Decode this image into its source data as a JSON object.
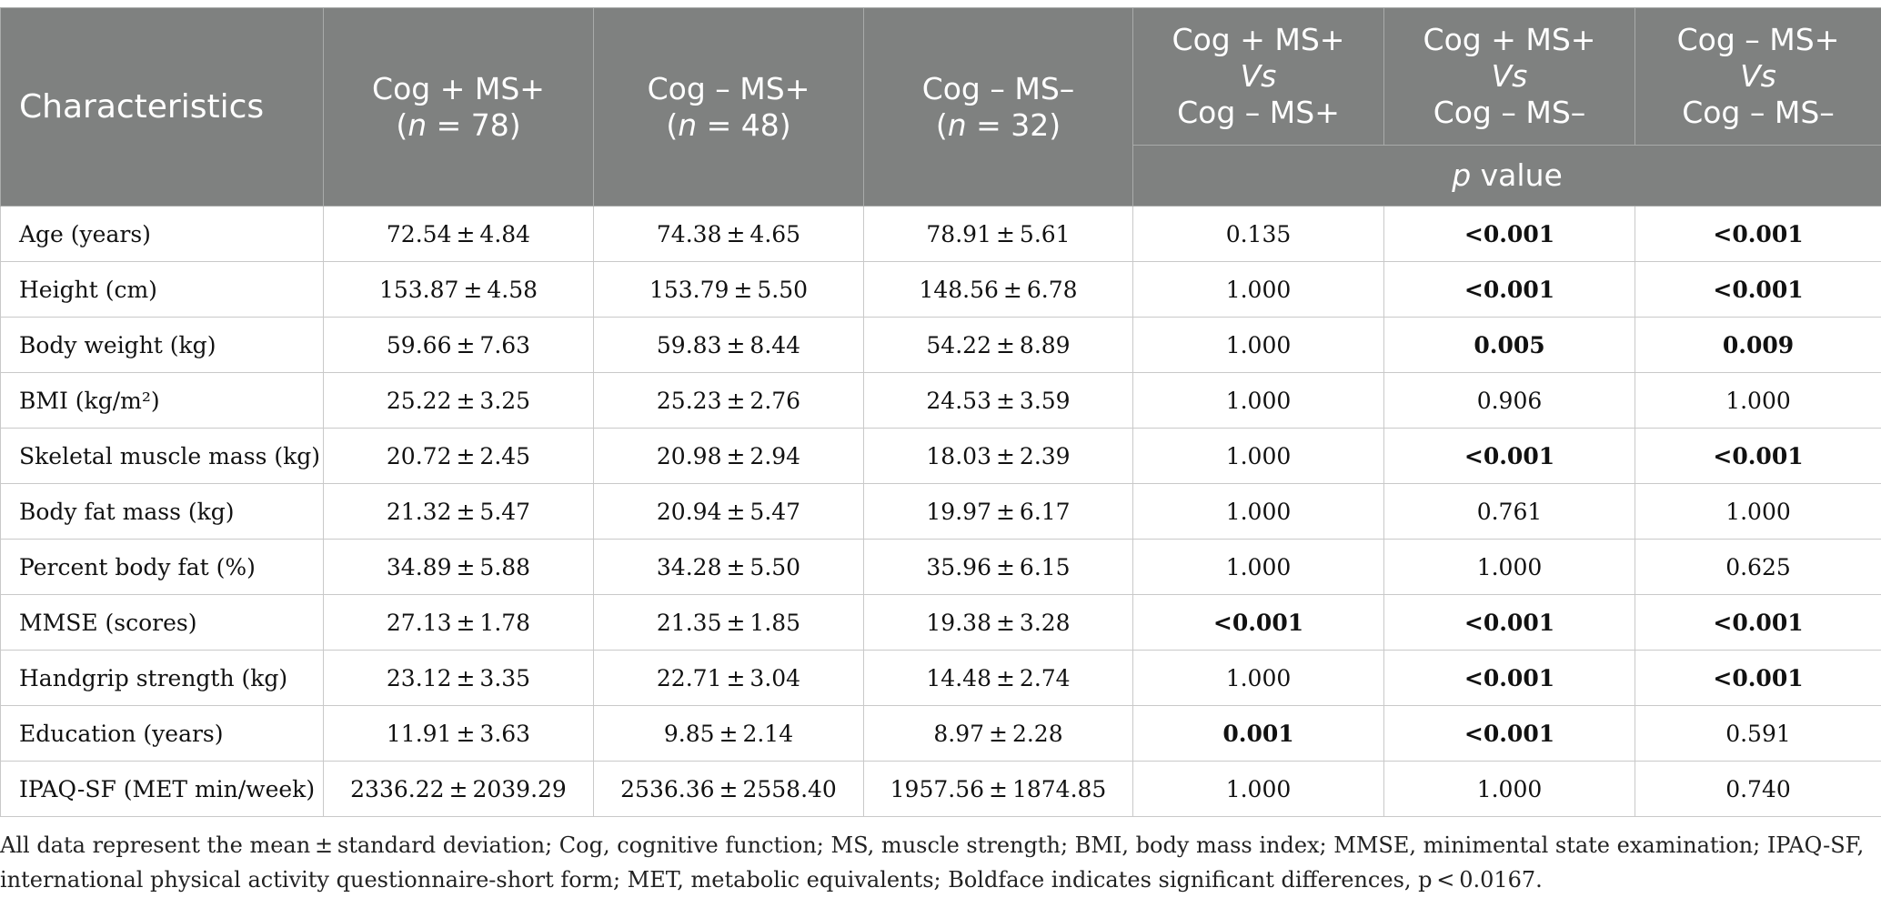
{
  "header": {
    "characteristics": "Characteristics",
    "groups": [
      {
        "name": "Cog + MS+",
        "n_prefix": "(",
        "n_italic": "n",
        "n_suffix": " = 78)"
      },
      {
        "name": "Cog – MS+",
        "n_prefix": "(",
        "n_italic": "n",
        "n_suffix": " = 48)"
      },
      {
        "name": "Cog – MS–",
        "n_prefix": "(",
        "n_italic": "n",
        "n_suffix": " = 32)"
      }
    ],
    "comparisons": [
      {
        "a": "Cog + MS+",
        "vs": "Vs",
        "b": "Cog – MS+"
      },
      {
        "a": "Cog + MS+",
        "vs": "Vs",
        "b": "Cog – MS–"
      },
      {
        "a": "Cog – MS+",
        "vs": "Vs",
        "b": "Cog – MS–"
      }
    ],
    "pvalue_italic": "p",
    "pvalue_rest": " value"
  },
  "rows": [
    {
      "label": "Age (years)",
      "g1": "72.54 ± 4.84",
      "g2": "74.38 ± 4.65",
      "g3": "78.91 ± 5.61",
      "p1": "0.135",
      "p2": "<0.001",
      "p3": "<0.001",
      "b1": false,
      "b2": true,
      "b3": true
    },
    {
      "label": "Height (cm)",
      "g1": "153.87 ± 4.58",
      "g2": "153.79 ± 5.50",
      "g3": "148.56 ± 6.78",
      "p1": "1.000",
      "p2": "<0.001",
      "p3": "<0.001",
      "b1": false,
      "b2": true,
      "b3": true
    },
    {
      "label": "Body weight (kg)",
      "g1": "59.66 ± 7.63",
      "g2": "59.83 ± 8.44",
      "g3": "54.22 ± 8.89",
      "p1": "1.000",
      "p2": "0.005",
      "p3": "0.009",
      "b1": false,
      "b2": true,
      "b3": true
    },
    {
      "label": "BMI (kg/m²)",
      "g1": "25.22 ± 3.25",
      "g2": "25.23 ± 2.76",
      "g3": "24.53 ± 3.59",
      "p1": "1.000",
      "p2": "0.906",
      "p3": "1.000",
      "b1": false,
      "b2": false,
      "b3": false
    },
    {
      "label": "Skeletal muscle mass (kg)",
      "g1": "20.72 ± 2.45",
      "g2": "20.98 ± 2.94",
      "g3": "18.03 ± 2.39",
      "p1": "1.000",
      "p2": "<0.001",
      "p3": "<0.001",
      "b1": false,
      "b2": true,
      "b3": true
    },
    {
      "label": "Body fat mass (kg)",
      "g1": "21.32 ± 5.47",
      "g2": "20.94 ± 5.47",
      "g3": "19.97 ± 6.17",
      "p1": "1.000",
      "p2": "0.761",
      "p3": "1.000",
      "b1": false,
      "b2": false,
      "b3": false
    },
    {
      "label": "Percent body fat (%)",
      "g1": "34.89 ± 5.88",
      "g2": "34.28 ± 5.50",
      "g3": "35.96 ± 6.15",
      "p1": "1.000",
      "p2": "1.000",
      "p3": "0.625",
      "b1": false,
      "b2": false,
      "b3": false
    },
    {
      "label": "MMSE (scores)",
      "g1": "27.13 ± 1.78",
      "g2": "21.35 ± 1.85",
      "g3": "19.38 ± 3.28",
      "p1": "<0.001",
      "p2": "<0.001",
      "p3": "<0.001",
      "b1": true,
      "b2": true,
      "b3": true
    },
    {
      "label": "Handgrip strength (kg)",
      "g1": "23.12 ± 3.35",
      "g2": "22.71 ± 3.04",
      "g3": "14.48 ± 2.74",
      "p1": "1.000",
      "p2": "<0.001",
      "p3": "<0.001",
      "b1": false,
      "b2": true,
      "b3": true
    },
    {
      "label": "Education (years)",
      "g1": "11.91 ± 3.63",
      "g2": "9.85 ± 2.14",
      "g3": "8.97 ± 2.28",
      "p1": "0.001",
      "p2": "<0.001",
      "p3": "0.591",
      "b1": true,
      "b2": true,
      "b3": false
    },
    {
      "label": "IPAQ-SF (MET min/week)",
      "g1": "2336.22 ± 2039.29",
      "g2": "2536.36 ± 2558.40",
      "g3": "1957.56 ± 1874.85",
      "p1": "1.000",
      "p2": "1.000",
      "p3": "0.740",
      "b1": false,
      "b2": false,
      "b3": false
    }
  ],
  "footnote": "All data represent the mean ± standard deviation; Cog, cognitive function; MS, muscle strength; BMI, body mass index; MMSE, minimental state examination; IPAQ-SF, international physical activity questionnaire-short form; MET, metabolic equivalents; Boldface indicates significant differences, p < 0.0167."
}
